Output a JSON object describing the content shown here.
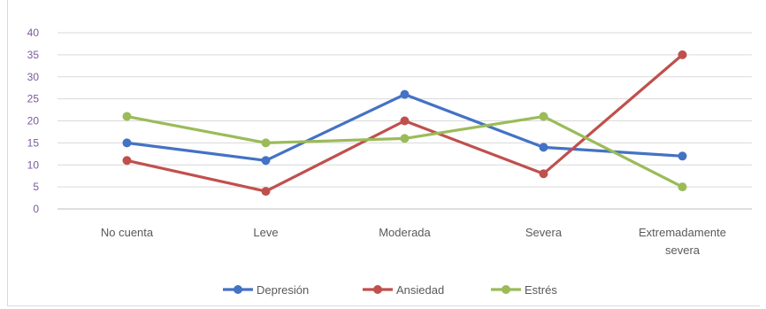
{
  "chart_data": {
    "type": "line",
    "categories": [
      "No cuenta",
      "Leve",
      "Moderada",
      "Severa",
      "Extremadamente severa"
    ],
    "category_lines": [
      [
        "No cuenta"
      ],
      [
        "Leve"
      ],
      [
        "Moderada"
      ],
      [
        "Severa"
      ],
      [
        "Extremadamente",
        "severa"
      ]
    ],
    "series": [
      {
        "name": "Depresión",
        "color": "#4472c4",
        "values": [
          15,
          11,
          26,
          14,
          12
        ]
      },
      {
        "name": "Ansiedad",
        "color": "#c0504d",
        "values": [
          11,
          4,
          20,
          8,
          35
        ]
      },
      {
        "name": "Estrés",
        "color": "#9bbb59",
        "values": [
          21,
          15,
          16,
          21,
          5
        ]
      }
    ],
    "ylim": [
      0,
      40
    ],
    "yticks": [
      0,
      5,
      10,
      15,
      20,
      25,
      30,
      35,
      40
    ],
    "grid": true,
    "legend_position": "bottom"
  }
}
